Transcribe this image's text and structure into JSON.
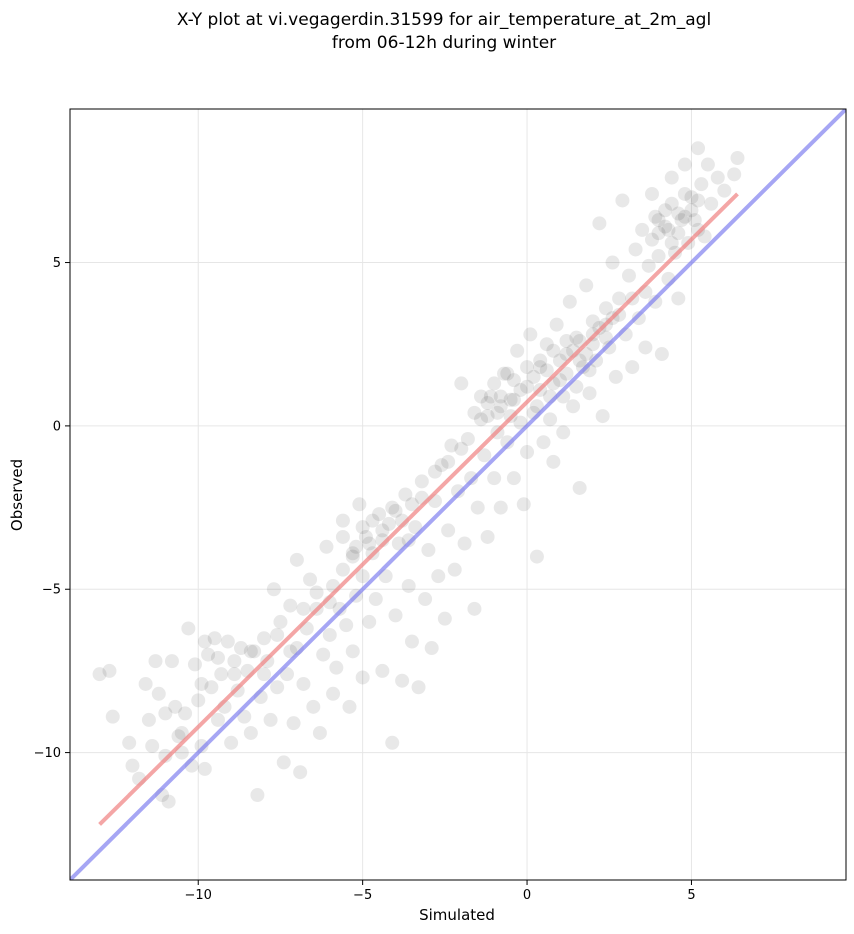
{
  "chart_data": {
    "type": "scatter",
    "title": [
      "X-Y plot at vi.vegagerdin.31599 for air_temperature_at_2m_agl",
      "from 06-12h during winter"
    ],
    "xlabel": "Simulated",
    "ylabel": "Observed",
    "xlim": [
      -13.9,
      9.7
    ],
    "ylim": [
      -13.9,
      9.7
    ],
    "xticks": [
      -10,
      -5,
      0,
      5
    ],
    "yticks": [
      -10,
      -5,
      0,
      5
    ],
    "xtick_labels": [
      "−10",
      "−5",
      "0",
      "5"
    ],
    "ytick_labels": [
      "−10",
      "−5",
      "0",
      "5"
    ],
    "grid": true,
    "point_color": "#000000",
    "point_alpha": 0.09,
    "fit_line": {
      "x": [
        -13.0,
        6.4
      ],
      "y": [
        -12.2,
        7.1
      ],
      "color": "#f08080"
    },
    "identity_line": {
      "x": [
        -13.9,
        9.7
      ],
      "y": [
        -13.9,
        9.7
      ],
      "color": "#7777ee"
    },
    "points": [
      [
        -13.0,
        -7.6
      ],
      [
        -12.7,
        -7.5
      ],
      [
        -12.6,
        -8.9
      ],
      [
        -12.1,
        -9.7
      ],
      [
        -12.0,
        -10.4
      ],
      [
        -11.8,
        -10.8
      ],
      [
        -11.6,
        -7.9
      ],
      [
        -11.5,
        -9.0
      ],
      [
        -11.4,
        -9.8
      ],
      [
        -11.3,
        -7.2
      ],
      [
        -11.2,
        -8.2
      ],
      [
        -11.1,
        -11.3
      ],
      [
        -11.0,
        -10.1
      ],
      [
        -10.9,
        -11.5
      ],
      [
        -10.8,
        -7.2
      ],
      [
        -10.7,
        -8.6
      ],
      [
        -10.6,
        -9.5
      ],
      [
        -10.5,
        -10.0
      ],
      [
        -10.4,
        -8.8
      ],
      [
        -10.3,
        -6.2
      ],
      [
        -10.2,
        -10.4
      ],
      [
        -10.1,
        -7.3
      ],
      [
        -10.0,
        -8.4
      ],
      [
        -9.9,
        -9.8
      ],
      [
        -9.8,
        -6.6
      ],
      [
        -9.8,
        -10.5
      ],
      [
        -9.7,
        -7.0
      ],
      [
        -9.6,
        -8.0
      ],
      [
        -9.5,
        -6.5
      ],
      [
        -9.4,
        -9.0
      ],
      [
        -9.3,
        -7.6
      ],
      [
        -9.2,
        -8.6
      ],
      [
        -9.1,
        -6.6
      ],
      [
        -9.0,
        -9.7
      ],
      [
        -8.9,
        -7.2
      ],
      [
        -8.8,
        -8.1
      ],
      [
        -8.7,
        -6.8
      ],
      [
        -8.6,
        -8.9
      ],
      [
        -8.5,
        -7.5
      ],
      [
        -8.4,
        -9.4
      ],
      [
        -8.3,
        -6.9
      ],
      [
        -8.2,
        -11.3
      ],
      [
        -8.1,
        -8.3
      ],
      [
        -8.0,
        -6.5
      ],
      [
        -7.9,
        -7.2
      ],
      [
        -7.8,
        -9.0
      ],
      [
        -7.7,
        -5.0
      ],
      [
        -7.6,
        -8.0
      ],
      [
        -7.5,
        -6.0
      ],
      [
        -7.4,
        -10.3
      ],
      [
        -7.3,
        -7.6
      ],
      [
        -7.2,
        -5.5
      ],
      [
        -7.1,
        -9.1
      ],
      [
        -7.0,
        -6.8
      ],
      [
        -7.0,
        -4.1
      ],
      [
        -6.9,
        -10.6
      ],
      [
        -6.8,
        -7.9
      ],
      [
        -6.7,
        -6.2
      ],
      [
        -6.6,
        -4.7
      ],
      [
        -6.5,
        -8.6
      ],
      [
        -6.4,
        -5.6
      ],
      [
        -6.3,
        -9.4
      ],
      [
        -6.2,
        -7.0
      ],
      [
        -6.1,
        -3.7
      ],
      [
        -6.0,
        -6.4
      ],
      [
        -5.9,
        -8.2
      ],
      [
        -5.9,
        -4.9
      ],
      [
        -5.8,
        -7.4
      ],
      [
        -5.7,
        -5.6
      ],
      [
        -5.6,
        -2.9
      ],
      [
        -5.5,
        -6.1
      ],
      [
        -5.4,
        -8.6
      ],
      [
        -5.3,
        -4.0
      ],
      [
        -5.3,
        -6.9
      ],
      [
        -5.2,
        -5.2
      ],
      [
        -5.1,
        -2.4
      ],
      [
        -5.0,
        -4.6
      ],
      [
        -5.0,
        -7.7
      ],
      [
        -4.9,
        -3.4
      ],
      [
        -4.8,
        -6.0
      ],
      [
        -4.7,
        -3.9
      ],
      [
        -4.6,
        -5.3
      ],
      [
        -4.5,
        -2.7
      ],
      [
        -4.4,
        -7.5
      ],
      [
        -4.3,
        -4.6
      ],
      [
        -4.2,
        -3.0
      ],
      [
        -4.1,
        -9.7
      ],
      [
        -4.0,
        -5.8
      ],
      [
        -3.9,
        -3.6
      ],
      [
        -3.8,
        -7.8
      ],
      [
        -3.7,
        -2.1
      ],
      [
        -3.6,
        -4.9
      ],
      [
        -3.5,
        -6.6
      ],
      [
        -3.4,
        -3.1
      ],
      [
        -3.3,
        -8.0
      ],
      [
        -3.2,
        -1.7
      ],
      [
        -3.1,
        -5.3
      ],
      [
        -3.0,
        -3.8
      ],
      [
        -2.9,
        -6.8
      ],
      [
        -2.8,
        -2.3
      ],
      [
        -2.7,
        -4.6
      ],
      [
        -2.6,
        -1.2
      ],
      [
        -2.5,
        -5.9
      ],
      [
        -2.4,
        -3.2
      ],
      [
        -2.3,
        -0.6
      ],
      [
        -2.2,
        -4.4
      ],
      [
        -2.1,
        -2.0
      ],
      [
        -2.0,
        1.3
      ],
      [
        -1.9,
        -3.6
      ],
      [
        -1.8,
        -0.4
      ],
      [
        -1.7,
        -1.6
      ],
      [
        -1.6,
        -5.6
      ],
      [
        -1.5,
        -2.5
      ],
      [
        -1.4,
        0.2
      ],
      [
        -1.3,
        -0.9
      ],
      [
        -1.2,
        -3.4
      ],
      [
        -1.1,
        0.9
      ],
      [
        -1.0,
        -1.6
      ],
      [
        -0.9,
        0.4
      ],
      [
        -0.8,
        -2.5
      ],
      [
        -0.7,
        1.6
      ],
      [
        -0.6,
        -0.5
      ],
      [
        -0.5,
        0.8
      ],
      [
        -0.4,
        -1.6
      ],
      [
        -0.3,
        2.3
      ],
      [
        -0.2,
        0.1
      ],
      [
        -0.1,
        -2.4
      ],
      [
        0.0,
        1.2
      ],
      [
        0.0,
        -0.8
      ],
      [
        0.1,
        2.8
      ],
      [
        0.2,
        0.4
      ],
      [
        0.3,
        -4.0
      ],
      [
        0.4,
        1.8
      ],
      [
        0.5,
        -0.5
      ],
      [
        0.6,
        2.5
      ],
      [
        0.7,
        0.9
      ],
      [
        0.8,
        -1.1
      ],
      [
        0.9,
        3.1
      ],
      [
        1.0,
        1.4
      ],
      [
        1.1,
        -0.2
      ],
      [
        1.2,
        2.2
      ],
      [
        1.3,
        3.8
      ],
      [
        1.4,
        0.6
      ],
      [
        1.5,
        2.7
      ],
      [
        1.6,
        -1.9
      ],
      [
        1.7,
        1.8
      ],
      [
        1.8,
        4.3
      ],
      [
        1.9,
        1.0
      ],
      [
        2.0,
        3.2
      ],
      [
        2.1,
        2.0
      ],
      [
        2.2,
        6.2
      ],
      [
        2.3,
        0.3
      ],
      [
        2.4,
        3.6
      ],
      [
        2.5,
        2.4
      ],
      [
        2.6,
        5.0
      ],
      [
        2.7,
        1.5
      ],
      [
        2.8,
        3.9
      ],
      [
        2.9,
        6.9
      ],
      [
        3.0,
        2.8
      ],
      [
        3.1,
        4.6
      ],
      [
        3.2,
        1.8
      ],
      [
        3.3,
        5.4
      ],
      [
        3.4,
        3.3
      ],
      [
        3.5,
        6.0
      ],
      [
        3.6,
        2.4
      ],
      [
        3.7,
        4.9
      ],
      [
        3.8,
        7.1
      ],
      [
        3.9,
        3.8
      ],
      [
        4.0,
        5.9
      ],
      [
        4.1,
        2.2
      ],
      [
        4.2,
        6.6
      ],
      [
        4.3,
        4.5
      ],
      [
        4.4,
        7.6
      ],
      [
        4.5,
        5.3
      ],
      [
        4.6,
        3.9
      ],
      [
        4.7,
        6.3
      ],
      [
        4.8,
        8.0
      ],
      [
        4.9,
        5.6
      ],
      [
        5.0,
        7.0
      ],
      [
        5.1,
        6.3
      ],
      [
        5.2,
        8.5
      ],
      [
        5.3,
        7.4
      ],
      [
        5.4,
        5.8
      ],
      [
        5.5,
        8.0
      ],
      [
        5.6,
        6.8
      ],
      [
        5.8,
        7.6
      ],
      [
        6.0,
        7.2
      ],
      [
        6.3,
        7.7
      ],
      [
        6.4,
        8.2
      ],
      [
        -11.0,
        -8.8
      ],
      [
        -10.5,
        -9.4
      ],
      [
        -9.9,
        -7.9
      ],
      [
        -9.4,
        -7.1
      ],
      [
        -8.9,
        -7.6
      ],
      [
        -8.4,
        -6.9
      ],
      [
        -8.0,
        -7.6
      ],
      [
        -7.6,
        -6.4
      ],
      [
        -7.2,
        -6.9
      ],
      [
        -6.8,
        -5.6
      ],
      [
        -6.4,
        -5.1
      ],
      [
        -6.0,
        -5.4
      ],
      [
        -5.6,
        -4.4
      ],
      [
        -5.2,
        -3.7
      ],
      [
        -4.8,
        -3.6
      ],
      [
        -4.4,
        -3.2
      ],
      [
        -4.0,
        -2.6
      ],
      [
        -3.6,
        -3.5
      ],
      [
        -3.2,
        -2.2
      ],
      [
        -2.8,
        -1.4
      ],
      [
        -2.4,
        -1.1
      ],
      [
        -2.0,
        -0.7
      ],
      [
        -1.6,
        0.4
      ],
      [
        -1.2,
        0.7
      ],
      [
        -0.8,
        0.9
      ],
      [
        -0.4,
        1.4
      ],
      [
        0.0,
        1.8
      ],
      [
        0.4,
        1.1
      ],
      [
        0.8,
        2.3
      ],
      [
        1.2,
        2.6
      ],
      [
        1.6,
        2.0
      ],
      [
        2.0,
        2.8
      ],
      [
        2.4,
        3.1
      ],
      [
        2.8,
        3.4
      ],
      [
        3.2,
        3.9
      ],
      [
        3.6,
        4.1
      ],
      [
        4.0,
        5.2
      ],
      [
        4.4,
        5.6
      ],
      [
        4.8,
        6.4
      ],
      [
        5.2,
        6.9
      ],
      [
        -5.6,
        -3.4
      ],
      [
        -5.3,
        -3.9
      ],
      [
        -5.0,
        -3.1
      ],
      [
        -4.7,
        -2.9
      ],
      [
        -4.4,
        -3.5
      ],
      [
        -4.1,
        -2.5
      ],
      [
        -3.8,
        -2.9
      ],
      [
        -3.5,
        -2.4
      ],
      [
        -1.4,
        0.9
      ],
      [
        -1.2,
        0.3
      ],
      [
        -1.0,
        1.3
      ],
      [
        -0.8,
        0.6
      ],
      [
        -0.6,
        1.6
      ],
      [
        -0.4,
        0.8
      ],
      [
        -0.2,
        1.1
      ],
      [
        0.2,
        1.5
      ],
      [
        0.4,
        2.0
      ],
      [
        0.6,
        1.7
      ],
      [
        0.8,
        1.3
      ],
      [
        1.0,
        2.0
      ],
      [
        1.2,
        1.6
      ],
      [
        1.4,
        2.3
      ],
      [
        1.6,
        2.6
      ],
      [
        1.8,
        2.2
      ],
      [
        2.0,
        2.5
      ],
      [
        2.2,
        3.0
      ],
      [
        2.4,
        2.7
      ],
      [
        2.6,
        3.3
      ],
      [
        3.8,
        5.7
      ],
      [
        4.0,
        6.3
      ],
      [
        4.2,
        6.1
      ],
      [
        4.4,
        6.8
      ],
      [
        4.6,
        6.5
      ],
      [
        4.8,
        7.1
      ],
      [
        5.0,
        6.6
      ],
      [
        5.2,
        6.0
      ],
      [
        4.6,
        5.9
      ],
      [
        4.3,
        6.0
      ],
      [
        3.9,
        6.4
      ],
      [
        -0.9,
        -0.2
      ],
      [
        -0.5,
        0.3
      ],
      [
        0.3,
        0.6
      ],
      [
        0.7,
        0.2
      ],
      [
        1.1,
        0.9
      ],
      [
        1.5,
        1.2
      ],
      [
        1.9,
        1.7
      ]
    ]
  }
}
